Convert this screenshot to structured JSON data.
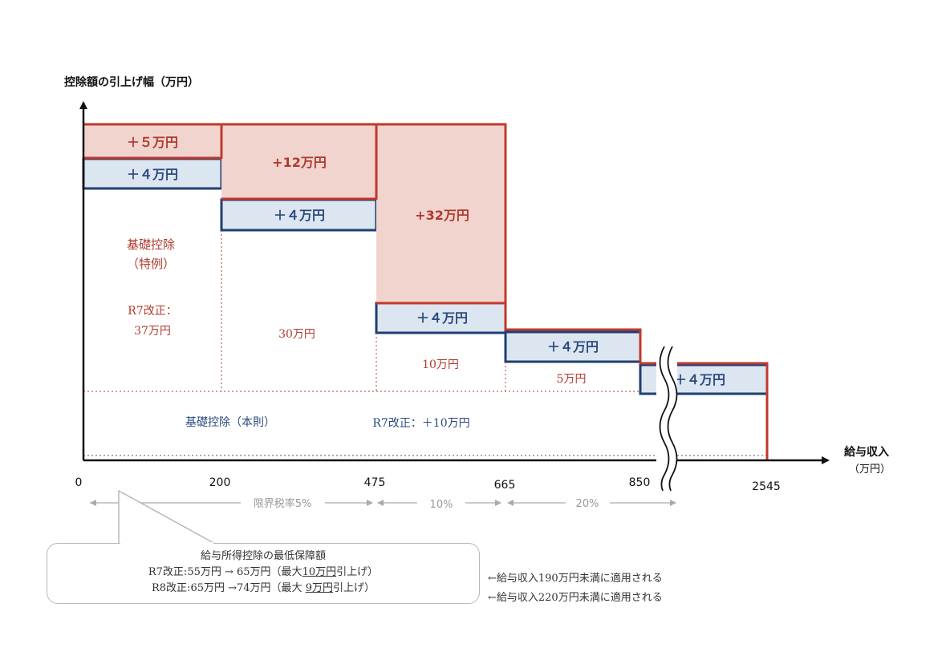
{
  "y_axis_label": "控除額の引上げ幅（万円）",
  "x_axis_label": "給与収入",
  "x_axis_unit": "（万円）",
  "ticks": [
    "0",
    "200",
    "475",
    "665",
    "850",
    "2545"
  ],
  "chart_data": {
    "type": "stacked-step",
    "unit": "万円",
    "brackets": [
      {
        "from": "0",
        "to": "200",
        "red": "＋５万円",
        "blue": "＋４万円",
        "base": [
          "基礎控除",
          "（特例）",
          "R7改正：",
          "37万円"
        ]
      },
      {
        "from": "200",
        "to": "475",
        "red": "+12万円",
        "blue": "＋４万円",
        "base": [
          "30万円"
        ]
      },
      {
        "from": "475",
        "to": "665",
        "red": "+32万円",
        "blue": "＋４万円",
        "base": [
          "10万円"
        ]
      },
      {
        "from": "665",
        "to": "850",
        "red": "",
        "blue": "＋４万円",
        "base": [
          "5万円"
        ]
      },
      {
        "from": "850",
        "to": "2545",
        "red": "",
        "blue": "＋４万円",
        "base": []
      }
    ],
    "honsoku_label": "基礎控除（本則）",
    "honsoku_value": "R7改正：＋10万円",
    "marginal_rates": [
      {
        "range": "0-475",
        "label": "限界税率5%"
      },
      {
        "range": "475-665",
        "label": "10%"
      },
      {
        "range": "665-850",
        "label": "20%"
      }
    ]
  },
  "callout": {
    "title": "給与所得控除の最低保障額",
    "line1_a": "R7改正:55万円 → 65万円（最大",
    "line1_u": "10万円",
    "line1_b": "引上げ）",
    "line2_a": "R8改正:65万円 →74万円（最大 ",
    "line2_u": "9万円",
    "line2_b": "引上げ）"
  },
  "side_notes": [
    "←給与収入190万円未満に適用される",
    "←給与収入220万円未満に適用される"
  ],
  "colors": {
    "red_fill": "#f2d4cf",
    "red_line": "#c0392b",
    "blue_fill": "#dce6f1",
    "blue_line": "#1f3f73",
    "red_text": "#b03a2e",
    "blue_text": "#2b4a7f"
  }
}
